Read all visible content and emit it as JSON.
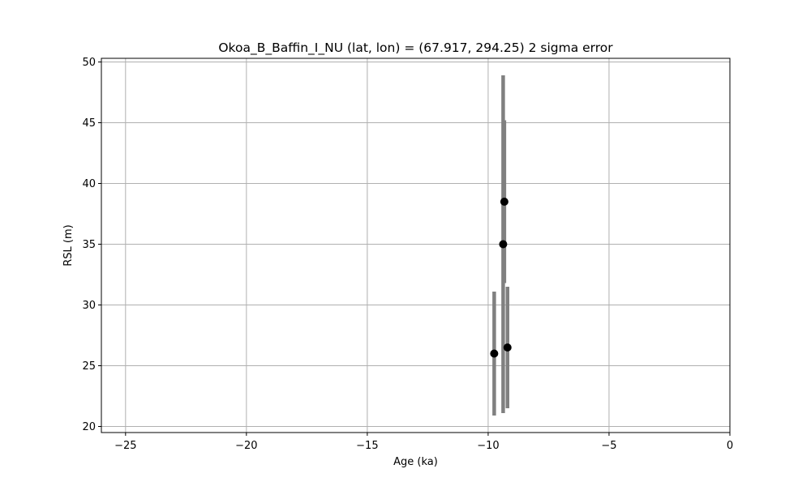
{
  "chart_data": {
    "type": "scatter",
    "title": "Okoa_B_Baffin_I_NU (lat, lon) = (67.917, 294.25)  2 sigma error",
    "xlabel": "Age (ka)",
    "ylabel": "RSL (m)",
    "xlim": [
      -26,
      0
    ],
    "ylim": [
      19.5,
      50.3
    ],
    "xticks": [
      -25,
      -20,
      -15,
      -10,
      -5,
      0
    ],
    "xtick_labels": [
      "−25",
      "−20",
      "−15",
      "−10",
      "−5",
      "0"
    ],
    "yticks": [
      20,
      25,
      30,
      35,
      40,
      45,
      50
    ],
    "ytick_labels": [
      "20",
      "25",
      "30",
      "35",
      "40",
      "45",
      "50"
    ],
    "grid": true,
    "legend": "none",
    "marker_color": "#000000",
    "errorbar_color": "#808080",
    "points": [
      {
        "x": -9.75,
        "y": 26.0,
        "ylow": 20.9,
        "yhigh": 31.1
      },
      {
        "x": -9.38,
        "y": 35.0,
        "ylow": 21.1,
        "yhigh": 48.9
      },
      {
        "x": -9.33,
        "y": 38.5,
        "ylow": 31.8,
        "yhigh": 45.2
      },
      {
        "x": -9.2,
        "y": 26.5,
        "ylow": 21.5,
        "yhigh": 31.5
      }
    ]
  }
}
